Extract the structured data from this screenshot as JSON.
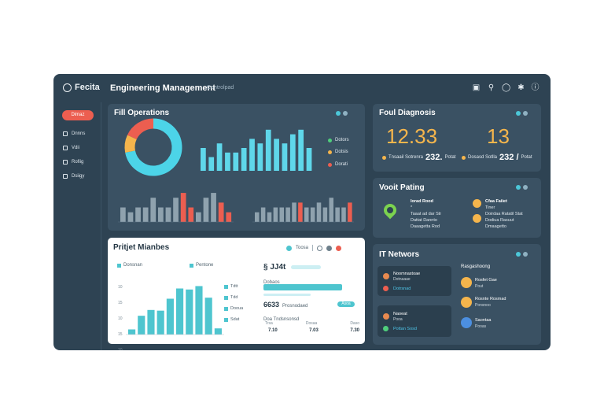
{
  "brand": "Fecita",
  "app_title": "Engineering Management",
  "app_subtitle": "Controlpad",
  "topbar_icons": [
    "camera-icon",
    "search-icon",
    "info-icon",
    "settings-icon",
    "help-icon"
  ],
  "sidebar": {
    "primary_button": "Dimaz",
    "items": [
      {
        "label": "Dnnns"
      },
      {
        "label": "Vdii"
      },
      {
        "label": "Rofiig"
      },
      {
        "label": "Dsiigy"
      }
    ]
  },
  "panels": {
    "operations": {
      "title": "Fill Operations",
      "legend": [
        "Dotors",
        "Dotsis",
        "Dorati"
      ]
    },
    "diagnosis": {
      "title": "Foul Diagnosis",
      "kpi_left": "12.33",
      "kpi_right": "13",
      "left_caption": "Tnsaail Sotrenra",
      "left_value": "232.",
      "left_unit": "Potat",
      "right_caption": "Dosasd Sotlla",
      "right_value": "232 /",
      "right_unit": "Potat"
    },
    "voice": {
      "title": "Vooit Pating",
      "left_lines": [
        "Iorad Rood",
        "*",
        "Taaat ad dar Str",
        "Dattat Dannto",
        "Daaagetta Rod"
      ],
      "right_lines": [
        "Cfaa Faiiet",
        "Tiner",
        "Doirdaa Ratatil Stat",
        "Dodiua Rasuut",
        "Dmaagetto"
      ]
    },
    "project": {
      "title": "Pritjet Mianbes",
      "legend": [
        "Donsnan",
        "Pentone"
      ],
      "chart_y_ticks": [
        "10",
        "15",
        "10",
        "15",
        "10"
      ],
      "side_legend": [
        "Tdtt",
        "Tdd",
        "Dooua",
        "Sdat"
      ],
      "stat_main": "§ JJ4t",
      "stat_main_sub": "Dobaos",
      "stat_chip": "Toosa",
      "stat2_main": "6633",
      "stat2_label": "Prosnodaed",
      "stat2_sub": "Doa Tndsnsonsd",
      "stat2_btn": "Asoa",
      "bottom_cols": [
        {
          "label": "Trsa",
          "value": "7.10"
        },
        {
          "label": "Dosaa",
          "value": "7.03"
        },
        {
          "label": "Daso",
          "value": "7.30"
        }
      ]
    },
    "network": {
      "title": "IT Networs",
      "card1": {
        "title": "Noomnastoae",
        "sub": "Dotnaaae",
        "link": "Dotrsnad"
      },
      "card2": {
        "title": "Naoeat",
        "sub": "Pooa",
        "link": "Pottan Sosd"
      },
      "right_title": "Rasgashoong",
      "right_items": [
        {
          "title": "Rosfet Gae",
          "sub": "Pout"
        },
        {
          "title": "Rosnte Rosmad",
          "sub": "Ponsnoo"
        },
        {
          "title": "Saontaa",
          "sub": "Pooas"
        }
      ]
    }
  },
  "chart_data": [
    {
      "type": "pie",
      "categories": [
        "Dotors",
        "Dotsis",
        "Dorati"
      ],
      "values": [
        72,
        10,
        18
      ],
      "colors": [
        "#4cd4e8",
        "#f5b54c",
        "#ec5e50"
      ]
    },
    {
      "type": "bar",
      "categories": [
        "1",
        "2",
        "3",
        "4",
        "5",
        "6",
        "7",
        "8",
        "9",
        "10",
        "11",
        "12",
        "13",
        "14"
      ],
      "values": [
        5,
        3,
        6,
        4,
        4,
        5,
        7,
        6,
        9,
        7,
        6,
        8,
        9,
        5
      ],
      "color": "#5fd7ea"
    },
    {
      "type": "bar",
      "categories": [
        "1",
        "2",
        "3",
        "4",
        "5",
        "6",
        "7",
        "8",
        "9",
        "10",
        "11",
        "12",
        "13",
        "14",
        "15"
      ],
      "values": [
        3,
        2,
        3,
        3,
        5,
        3,
        3,
        5,
        6,
        3,
        2,
        5,
        6,
        4,
        2
      ],
      "highlight": [
        8,
        9,
        13,
        14
      ],
      "color": "#8fa2ae",
      "highlight_color": "#ec5e50"
    },
    {
      "type": "bar",
      "categories": [
        "1",
        "2",
        "3",
        "4",
        "5",
        "6",
        "7",
        "8",
        "9",
        "10",
        "11",
        "12",
        "13",
        "14",
        "15",
        "16"
      ],
      "values": [
        2,
        3,
        2,
        3,
        3,
        3,
        4,
        4,
        3,
        3,
        4,
        3,
        5,
        3,
        3,
        4
      ],
      "highlight": [
        7,
        15
      ],
      "color": "#8fa2ae",
      "highlight_color": "#ec5e50"
    },
    {
      "type": "bar",
      "categories": [
        "1",
        "2",
        "3",
        "4",
        "5",
        "6",
        "7",
        "8",
        "9",
        "10"
      ],
      "values": [
        1.5,
        5.5,
        7.2,
        7.0,
        10.5,
        13.5,
        13.2,
        14.2,
        10.8,
        1.8
      ],
      "ylim": [
        0,
        15
      ],
      "color": "#4ec5cf"
    }
  ]
}
